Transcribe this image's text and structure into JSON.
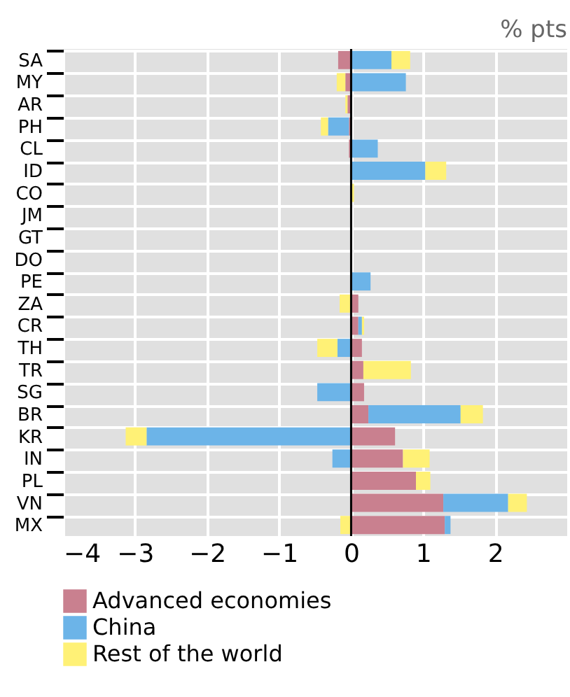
{
  "chart_data": {
    "type": "bar",
    "orientation": "horizontal",
    "stacked": true,
    "annotations": [
      "% pts"
    ],
    "categories": [
      "SA",
      "MY",
      "AR",
      "PH",
      "CL",
      "ID",
      "CO",
      "JM",
      "GT",
      "DO",
      "PE",
      "ZA",
      "CR",
      "TH",
      "TR",
      "SG",
      "BR",
      "KR",
      "IN",
      "PL",
      "VN",
      "MX"
    ],
    "series": [
      {
        "name": "Advanced economies",
        "color": "#c9808f",
        "values": [
          -0.18,
          -0.08,
          -0.05,
          -0.03,
          -0.03,
          0,
          0,
          0,
          0,
          0,
          0,
          0.1,
          0.1,
          0.15,
          0.17,
          0.18,
          0.24,
          0.61,
          0.72,
          0.9,
          1.28,
          1.3
        ]
      },
      {
        "name": "China",
        "color": "#6cb4e8",
        "values": [
          0.56,
          0.76,
          0,
          -0.29,
          0.37,
          1.03,
          0,
          0,
          0,
          null,
          0.27,
          0,
          0.05,
          -0.19,
          0,
          -0.47,
          1.28,
          -2.84,
          -0.26,
          0,
          0.9,
          0.08
        ]
      },
      {
        "name": "Rest of the world",
        "color": "#fff176",
        "values": [
          0.26,
          -0.12,
          -0.03,
          -0.1,
          0,
          0.29,
          0.04,
          0,
          null,
          0,
          0,
          -0.16,
          0.03,
          -0.28,
          0.66,
          0,
          0.31,
          -0.29,
          0.37,
          0.2,
          0.26,
          -0.15
        ]
      }
    ],
    "xlim": [
      -4,
      3
    ],
    "xticks": [
      -4,
      -3,
      -2,
      -1,
      0,
      1,
      2
    ],
    "ref_lines": [
      {
        "axis": "x",
        "value": 0,
        "color": "#000000"
      }
    ],
    "grid": true,
    "legend": "bottom"
  }
}
